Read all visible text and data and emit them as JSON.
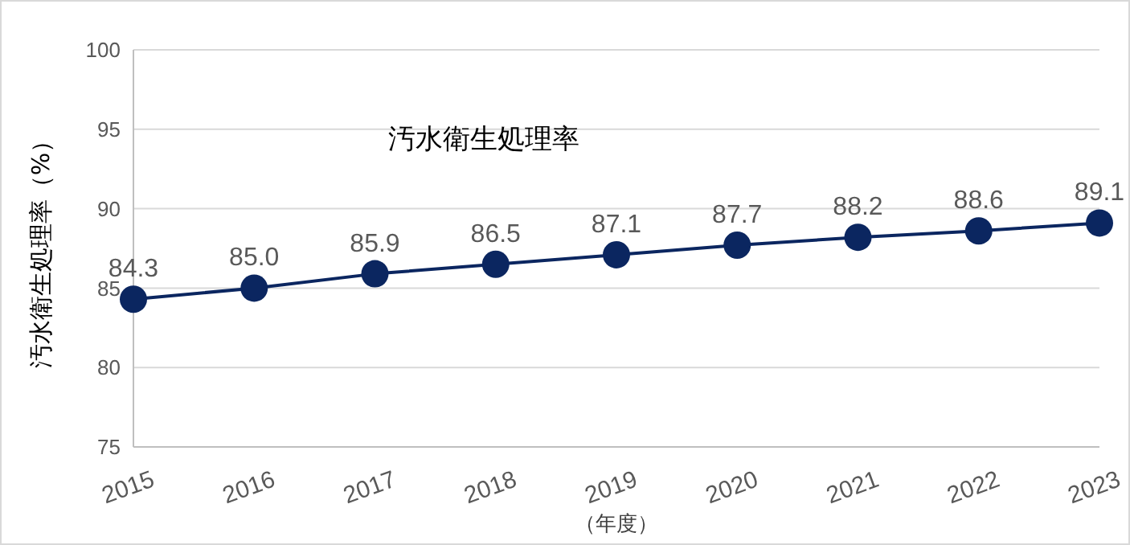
{
  "chart_data": {
    "type": "line",
    "title": "汚水衛生処理率",
    "xlabel": "（年度）",
    "ylabel": "汚水衛生処理率（%）",
    "categories": [
      "2015",
      "2016",
      "2017",
      "2018",
      "2019",
      "2020",
      "2021",
      "2022",
      "2023"
    ],
    "series": [
      {
        "color": "#0b2660",
        "values": [
          84.3,
          85.0,
          85.9,
          86.5,
          87.1,
          87.7,
          88.2,
          88.6,
          89.1
        ]
      }
    ],
    "value_labels": [
      "84.3",
      "85.0",
      "85.9",
      "86.5",
      "87.1",
      "87.7",
      "88.2",
      "88.6",
      "89.1"
    ],
    "ylim": [
      75,
      100
    ],
    "yticks": [
      75,
      80,
      85,
      90,
      95,
      100
    ],
    "grid": "y",
    "marker": "circle",
    "line_style": "solid",
    "legend": false
  }
}
